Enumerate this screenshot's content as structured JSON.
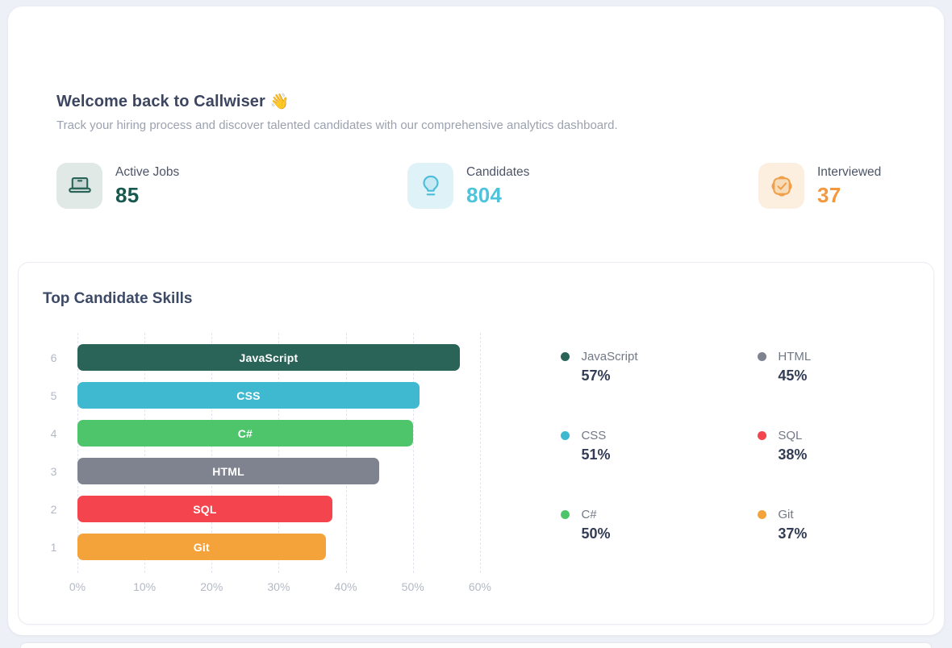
{
  "header": {
    "title": "Welcome back to Callwiser",
    "emoji": "👋",
    "subtitle": "Track your hiring process and discover talented candidates with our comprehensive analytics dashboard."
  },
  "stats": [
    {
      "label": "Active Jobs",
      "value": "85",
      "icon": "laptop-icon",
      "accent": "#17594e",
      "icon_color": "#2a6358",
      "icon_bg": "#e0e9e6"
    },
    {
      "label": "Candidates",
      "value": "804",
      "icon": "lightbulb-icon",
      "accent": "#4ec3dc",
      "icon_color": "#4bbcd9",
      "icon_bg": "#def2f8"
    },
    {
      "label": "Interviewed",
      "value": "37",
      "icon": "badge-check-icon",
      "accent": "#f2993f",
      "icon_color": "#f0a04b",
      "icon_bg": "#fcefe0"
    }
  ],
  "chart_card": {
    "title": "Top Candidate Skills"
  },
  "chart_data": {
    "type": "bar",
    "orientation": "horizontal",
    "title": "Top Candidate Skills",
    "categories": [
      "JavaScript",
      "CSS",
      "C#",
      "HTML",
      "SQL",
      "Git"
    ],
    "row_indices": [
      "6",
      "5",
      "4",
      "3",
      "2",
      "1"
    ],
    "values": [
      57,
      51,
      50,
      45,
      38,
      37
    ],
    "unit": "%",
    "colors": [
      "#2a6357",
      "#3fb9d0",
      "#4ec46b",
      "#7f8390",
      "#f4444e",
      "#f3a33a"
    ],
    "x_ticks": [
      "0%",
      "10%",
      "20%",
      "30%",
      "40%",
      "50%",
      "60%"
    ],
    "xlim": [
      0,
      60
    ],
    "grid": "vertical-dashed",
    "legend_position": "right",
    "legend": [
      {
        "name": "JavaScript",
        "value": "57%"
      },
      {
        "name": "HTML",
        "value": "45%"
      },
      {
        "name": "CSS",
        "value": "51%"
      },
      {
        "name": "SQL",
        "value": "38%"
      },
      {
        "name": "C#",
        "value": "50%"
      },
      {
        "name": "Git",
        "value": "37%"
      }
    ]
  }
}
